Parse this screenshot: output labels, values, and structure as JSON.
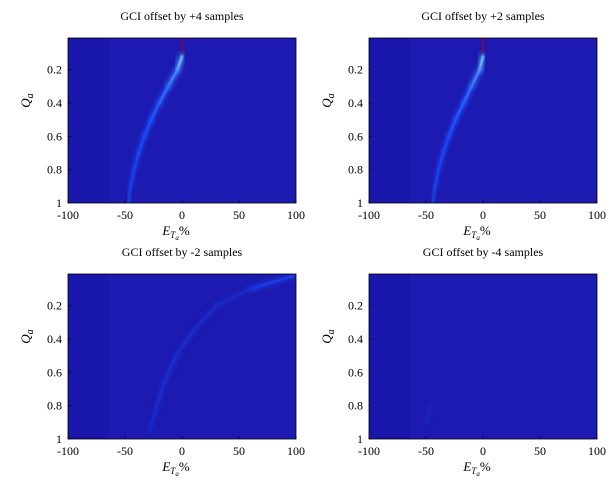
{
  "chart_data": [
    {
      "type": "heatmap",
      "title": "GCI offset by +4 samples",
      "xlabel": "E_{T_a} %",
      "ylabel": "Q_a",
      "xlim": [
        -100,
        100
      ],
      "ylim": [
        0.01,
        1
      ],
      "y_inverted": true,
      "xticks": [
        "-100",
        "-50",
        "0",
        "50",
        "100"
      ],
      "yticks": [
        "0.2",
        "0.4",
        "0.6",
        "0.8",
        "1"
      ],
      "ridge": [
        {
          "x": 0,
          "y": 0.02,
          "intensity": 0.55
        },
        {
          "x": 0,
          "y": 0.12,
          "intensity": 0.85
        },
        {
          "x": -4,
          "y": 0.2,
          "intensity": 0.6
        },
        {
          "x": -12,
          "y": 0.3,
          "intensity": 0.45
        },
        {
          "x": -20,
          "y": 0.4,
          "intensity": 0.38
        },
        {
          "x": -27,
          "y": 0.5,
          "intensity": 0.33
        },
        {
          "x": -33,
          "y": 0.6,
          "intensity": 0.3
        },
        {
          "x": -38,
          "y": 0.7,
          "intensity": 0.27
        },
        {
          "x": -42,
          "y": 0.8,
          "intensity": 0.25
        },
        {
          "x": -45,
          "y": 0.9,
          "intensity": 0.22
        },
        {
          "x": -47,
          "y": 1.0,
          "intensity": 0.2
        }
      ]
    },
    {
      "type": "heatmap",
      "title": "GCI offset by +2 samples",
      "xlabel": "E_{T_a} %",
      "ylabel": "Q_a",
      "xlim": [
        -100,
        100
      ],
      "ylim": [
        0.01,
        1
      ],
      "y_inverted": true,
      "xticks": [
        "-100",
        "-50",
        "0",
        "50",
        "100"
      ],
      "yticks": [
        "0.2",
        "0.4",
        "0.6",
        "0.8",
        "1"
      ],
      "ridge": [
        {
          "x": 0,
          "y": 0.02,
          "intensity": 0.55
        },
        {
          "x": 0,
          "y": 0.12,
          "intensity": 0.85
        },
        {
          "x": -3,
          "y": 0.2,
          "intensity": 0.6
        },
        {
          "x": -10,
          "y": 0.3,
          "intensity": 0.45
        },
        {
          "x": -17,
          "y": 0.4,
          "intensity": 0.38
        },
        {
          "x": -24,
          "y": 0.5,
          "intensity": 0.33
        },
        {
          "x": -30,
          "y": 0.6,
          "intensity": 0.3
        },
        {
          "x": -35,
          "y": 0.7,
          "intensity": 0.27
        },
        {
          "x": -39,
          "y": 0.8,
          "intensity": 0.25
        },
        {
          "x": -42,
          "y": 0.9,
          "intensity": 0.22
        },
        {
          "x": -44,
          "y": 1.0,
          "intensity": 0.2
        }
      ]
    },
    {
      "type": "heatmap",
      "title": "GCI offset by -2 samples",
      "xlabel": "E_{T_a} %",
      "ylabel": "Q_a",
      "xlim": [
        -100,
        100
      ],
      "ylim": [
        0.01,
        1
      ],
      "y_inverted": true,
      "xticks": [
        "-100",
        "-50",
        "0",
        "50",
        "100"
      ],
      "yticks": [
        "0.2",
        "0.4",
        "0.6",
        "0.8",
        "1"
      ],
      "ridge": [
        {
          "x": 98,
          "y": 0.02,
          "intensity": 0.35
        },
        {
          "x": 60,
          "y": 0.1,
          "intensity": 0.08
        },
        {
          "x": 30,
          "y": 0.2,
          "intensity": 0.09
        },
        {
          "x": 10,
          "y": 0.35,
          "intensity": 0.1
        },
        {
          "x": -5,
          "y": 0.5,
          "intensity": 0.11
        },
        {
          "x": -15,
          "y": 0.65,
          "intensity": 0.12
        },
        {
          "x": -22,
          "y": 0.8,
          "intensity": 0.11
        },
        {
          "x": -28,
          "y": 0.95,
          "intensity": 0.08
        }
      ]
    },
    {
      "type": "heatmap",
      "title": "GCI offset by -4 samples",
      "xlabel": "E_{T_a} %",
      "ylabel": "Q_a",
      "xlim": [
        -100,
        100
      ],
      "ylim": [
        0.01,
        1
      ],
      "y_inverted": true,
      "xticks": [
        "-100",
        "-50",
        "0",
        "50",
        "100"
      ],
      "yticks": [
        "0.2",
        "0.4",
        "0.6",
        "0.8",
        "1"
      ],
      "ridge": [
        {
          "x": -45,
          "y": 0.8,
          "intensity": 0.05
        },
        {
          "x": -50,
          "y": 0.9,
          "intensity": 0.05
        }
      ]
    }
  ],
  "colors": {
    "background": "#1c1ab0",
    "dark": "#00008f",
    "mid": "#1f4fff",
    "bright": "#6fd0ff",
    "peak": "#e0ffff",
    "redline": "#b00000"
  }
}
